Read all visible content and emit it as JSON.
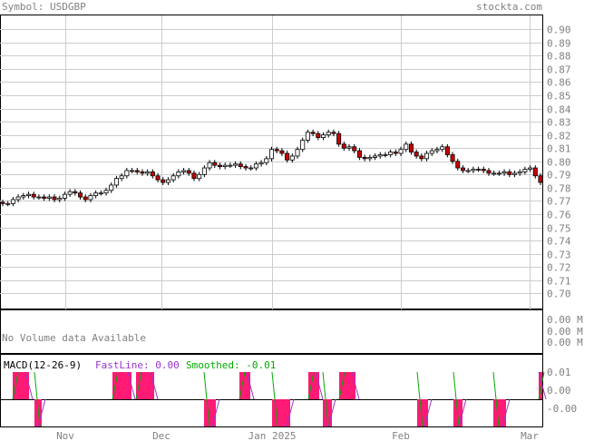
{
  "header": {
    "symbol_label": "Symbol: USDGBP",
    "site": "stockta.com"
  },
  "volume_panel": {
    "note": "No Volume data Available",
    "ticks": [
      "0.00 M",
      "0.00 M",
      "0.00 M"
    ]
  },
  "macd_panel": {
    "title": "MACD(12-26-9)",
    "fastline_label": "FastLine: 0.00",
    "smoothed_label": "Smoothed: -0.01",
    "ticks": [
      "0.01",
      "0.00",
      "-0.00"
    ],
    "colors": {
      "fast": "#9933cc",
      "smoothed": "#00aa00",
      "hist": "#ff1a75"
    }
  },
  "chart_data": {
    "type": "candlestick",
    "symbol": "USDGBP",
    "x_labels": [
      "Nov",
      "Dec",
      "Jan 2025",
      "Feb",
      "Mar"
    ],
    "y_ticks": [
      0.7,
      0.71,
      0.72,
      0.73,
      0.74,
      0.75,
      0.76,
      0.77,
      0.78,
      0.79,
      0.8,
      0.81,
      0.82,
      0.83,
      0.84,
      0.85,
      0.86,
      0.87,
      0.88,
      0.89,
      0.9
    ],
    "ylim": [
      0.6885,
      0.9105
    ],
    "grid": true,
    "colors": {
      "up": "#ffffff",
      "down": "#cc0000",
      "grid": "#cccccc"
    },
    "closes": [
      0.768,
      0.768,
      0.771,
      0.773,
      0.774,
      0.775,
      0.773,
      0.773,
      0.772,
      0.773,
      0.771,
      0.772,
      0.775,
      0.777,
      0.776,
      0.773,
      0.771,
      0.774,
      0.776,
      0.776,
      0.778,
      0.782,
      0.787,
      0.789,
      0.793,
      0.793,
      0.792,
      0.791,
      0.792,
      0.789,
      0.786,
      0.784,
      0.786,
      0.789,
      0.792,
      0.793,
      0.791,
      0.787,
      0.79,
      0.795,
      0.799,
      0.797,
      0.796,
      0.797,
      0.797,
      0.798,
      0.796,
      0.795,
      0.795,
      0.798,
      0.799,
      0.802,
      0.809,
      0.808,
      0.806,
      0.801,
      0.804,
      0.809,
      0.816,
      0.822,
      0.821,
      0.818,
      0.82,
      0.822,
      0.821,
      0.813,
      0.81,
      0.811,
      0.808,
      0.803,
      0.802,
      0.803,
      0.804,
      0.805,
      0.805,
      0.807,
      0.806,
      0.809,
      0.813,
      0.807,
      0.804,
      0.802,
      0.806,
      0.808,
      0.809,
      0.811,
      0.805,
      0.8,
      0.795,
      0.793,
      0.793,
      0.794,
      0.794,
      0.793,
      0.791,
      0.791,
      0.791,
      0.792,
      0.79,
      0.791,
      0.792,
      0.794,
      0.795,
      0.789,
      0.784
    ]
  }
}
